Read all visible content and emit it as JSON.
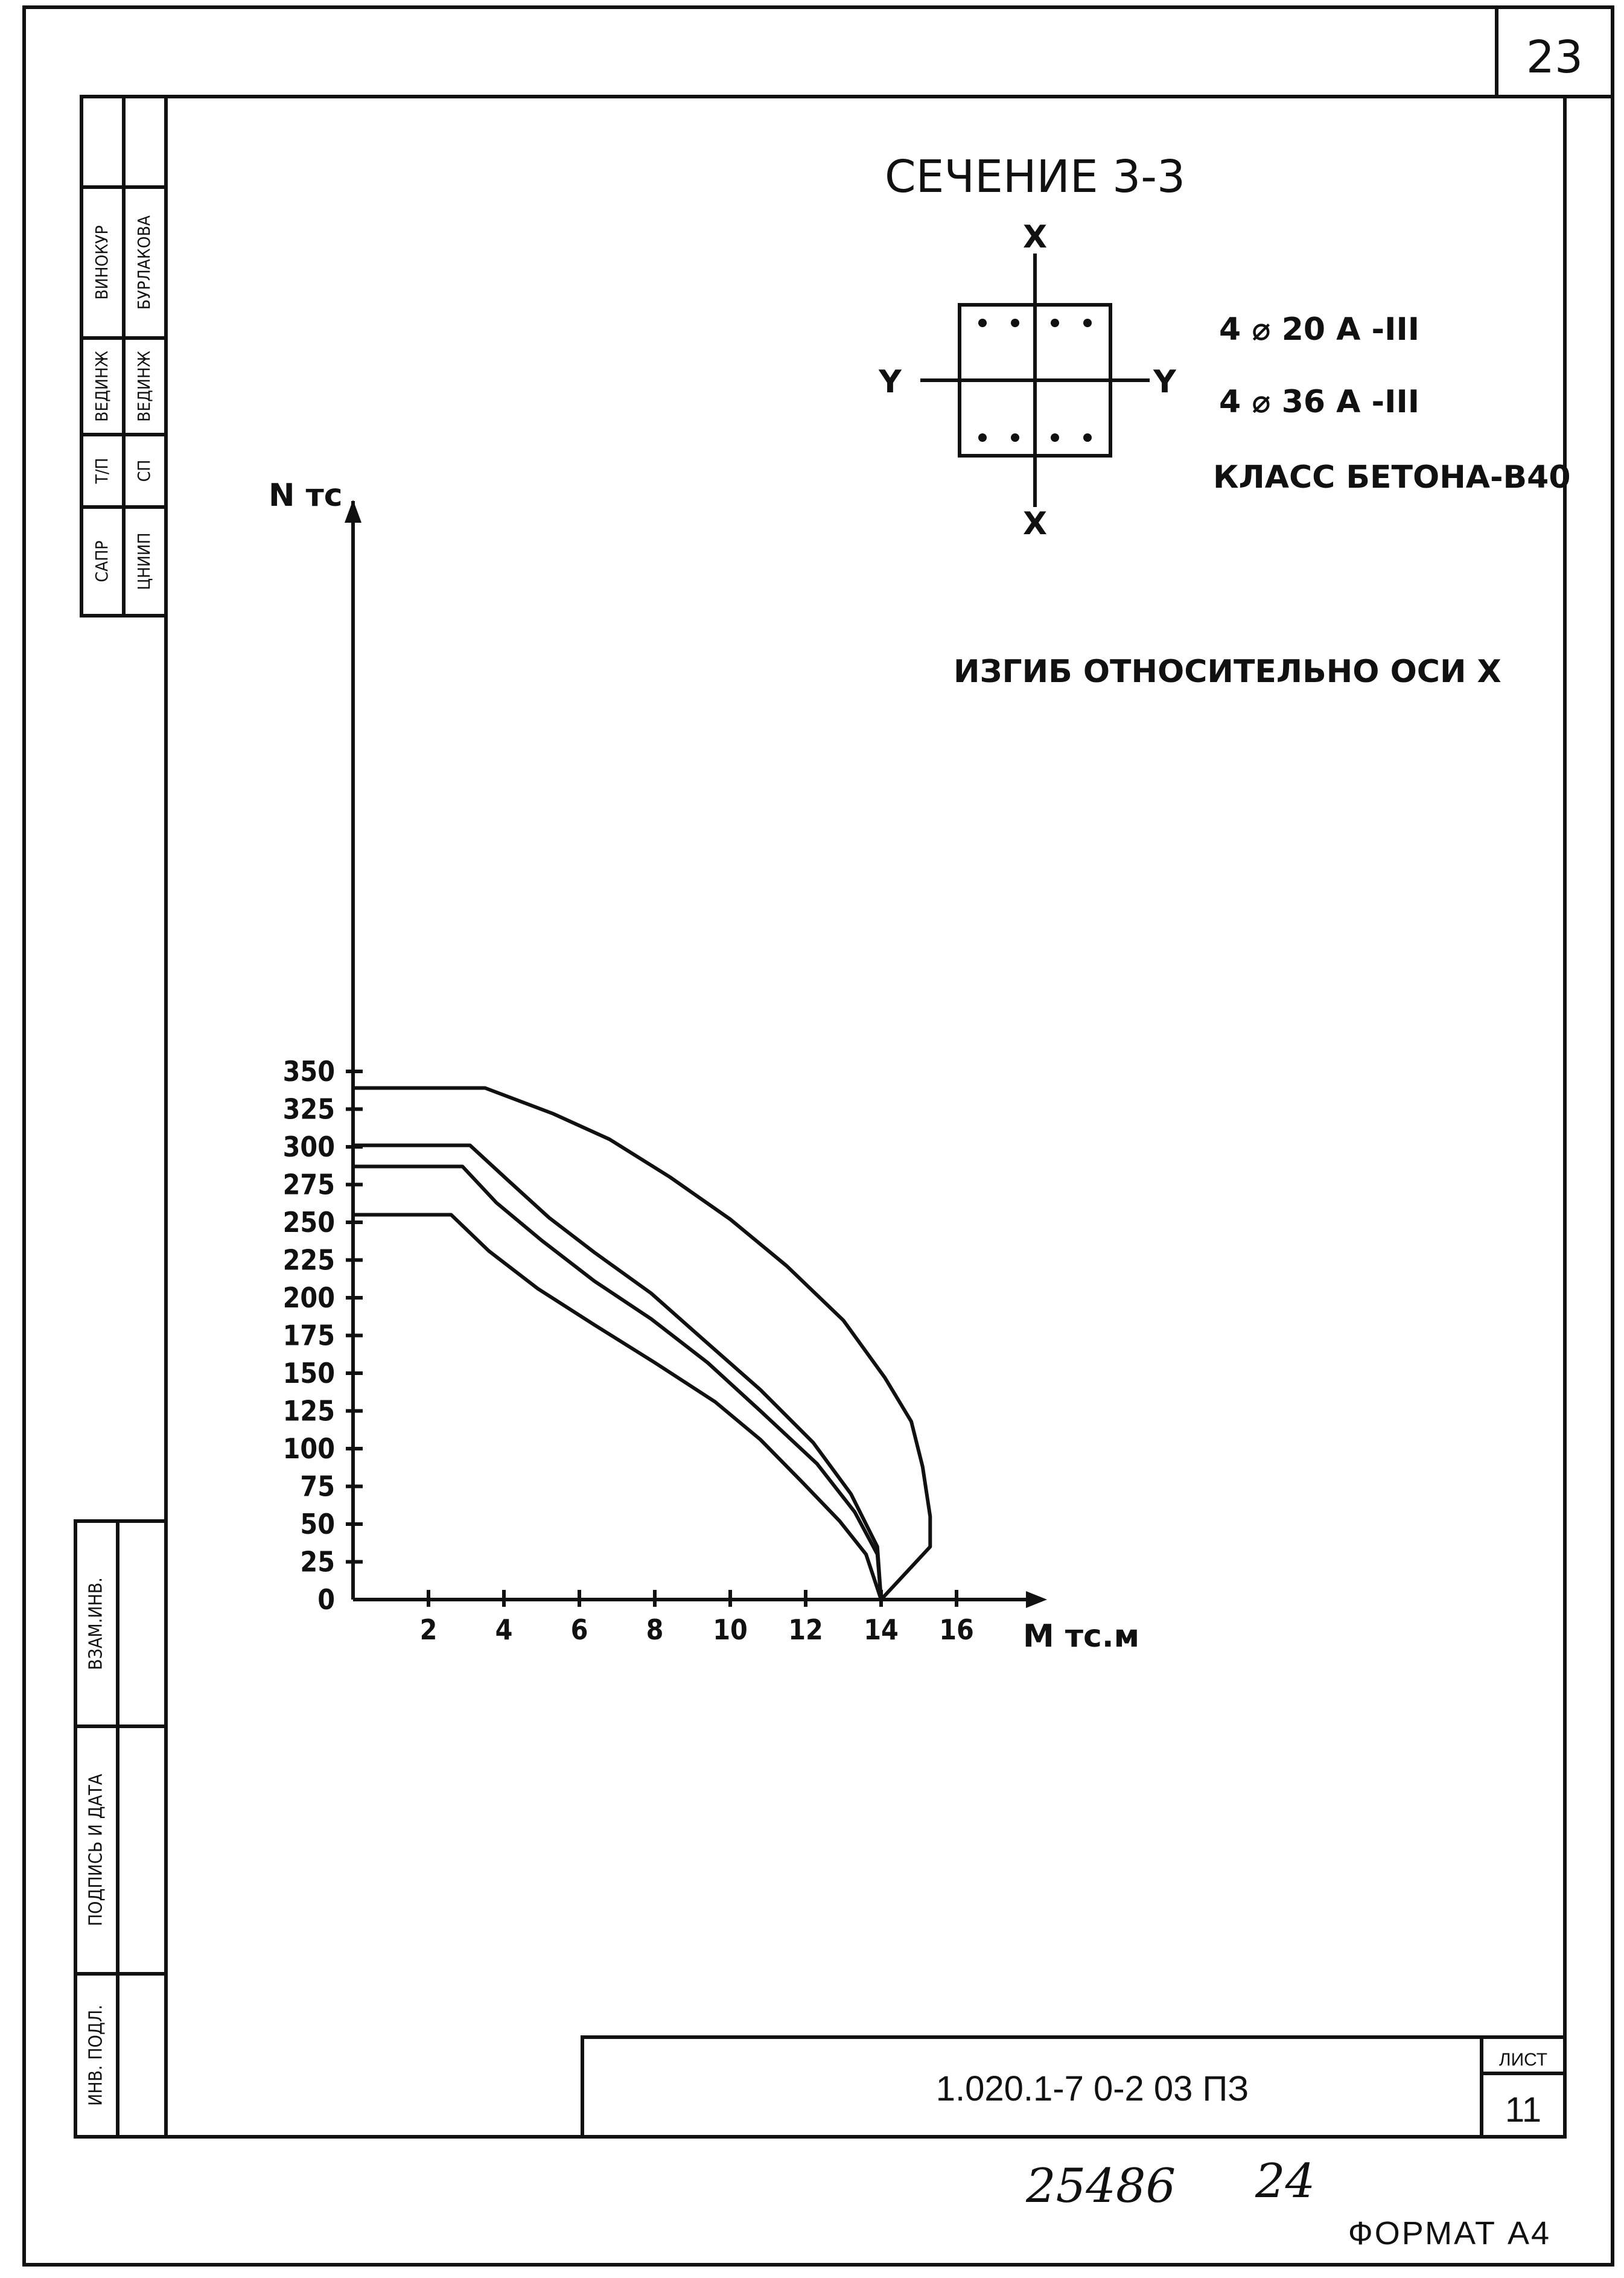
{
  "page_number": "23",
  "section": {
    "title": "СЕЧЕНИЕ 3-3",
    "axis_x_label": "X",
    "axis_y_label": "Y",
    "rebar_1": "4 ⌀ 20 А -III",
    "rebar_2": "4 ⌀ 36 А -III",
    "concrete_class": "КЛАСС БЕТОНА-В40"
  },
  "bending_note": "ИЗГИБ ОТНОСИТЕЛЬНО ОСИ Х",
  "side_stamp": {
    "col1": [
      "САПР",
      "Т/П",
      "ВЕДИНЖ",
      "ВИНОКУР"
    ],
    "col2": [
      "ЦНИИП",
      "СП",
      "ВЕДИНЖ",
      "БУРЛАКОВА"
    ]
  },
  "left_margin": {
    "labels": [
      "ВЗАМ.ИНВ.",
      "ПОДПИСЬ И ДАТА",
      "ИНВ. ПОДЛ."
    ]
  },
  "title_block": {
    "doc_code": "1.020.1-7  0-2  03 ПЗ",
    "sheet_label": "ЛИСТ",
    "sheet_number": "11"
  },
  "handwritten": {
    "inventory": "25486",
    "page": "24"
  },
  "format_label": "ФОРМАТ А4",
  "chart_data": {
    "type": "line",
    "title": "",
    "xlabel": "М тс.м",
    "ylabel": "N тс",
    "xlim": [
      0,
      18
    ],
    "ylim": [
      0,
      360
    ],
    "x_ticks": [
      2,
      4,
      6,
      8,
      10,
      12,
      14,
      16
    ],
    "y_ticks": [
      0,
      25,
      50,
      75,
      100,
      125,
      150,
      175,
      200,
      225,
      250,
      275,
      300,
      325,
      350
    ],
    "grid": false,
    "series": [
      {
        "points": [
          [
            0,
            339
          ],
          [
            3.5,
            339
          ],
          [
            5.3,
            322
          ],
          [
            6.8,
            305
          ],
          [
            8.4,
            280
          ],
          [
            10,
            252
          ],
          [
            11.5,
            221
          ],
          [
            13,
            185
          ],
          [
            14.1,
            147
          ],
          [
            14.8,
            118
          ],
          [
            15.1,
            88
          ],
          [
            15.3,
            55
          ],
          [
            15.3,
            35
          ],
          [
            14,
            0
          ]
        ]
      },
      {
        "points": [
          [
            0,
            301
          ],
          [
            3.1,
            301
          ],
          [
            4.1,
            278
          ],
          [
            5.2,
            253
          ],
          [
            6.4,
            230
          ],
          [
            7.9,
            203
          ],
          [
            9.3,
            172
          ],
          [
            10.8,
            139
          ],
          [
            12.2,
            104
          ],
          [
            13.2,
            70
          ],
          [
            13.9,
            35
          ],
          [
            14,
            0
          ]
        ]
      },
      {
        "points": [
          [
            0,
            287
          ],
          [
            2.9,
            287
          ],
          [
            3.8,
            263
          ],
          [
            5,
            238
          ],
          [
            6.4,
            211
          ],
          [
            7.9,
            186
          ],
          [
            9.4,
            157
          ],
          [
            10.8,
            125
          ],
          [
            12.3,
            90
          ],
          [
            13.3,
            58
          ],
          [
            13.9,
            30
          ],
          [
            14,
            0
          ]
        ]
      },
      {
        "points": [
          [
            0,
            255
          ],
          [
            2.6,
            255
          ],
          [
            3.6,
            231
          ],
          [
            4.9,
            206
          ],
          [
            6.4,
            182
          ],
          [
            8,
            157
          ],
          [
            9.6,
            131
          ],
          [
            10.8,
            106
          ],
          [
            11.9,
            78
          ],
          [
            12.9,
            52
          ],
          [
            13.6,
            30
          ],
          [
            14,
            0
          ]
        ]
      }
    ]
  }
}
